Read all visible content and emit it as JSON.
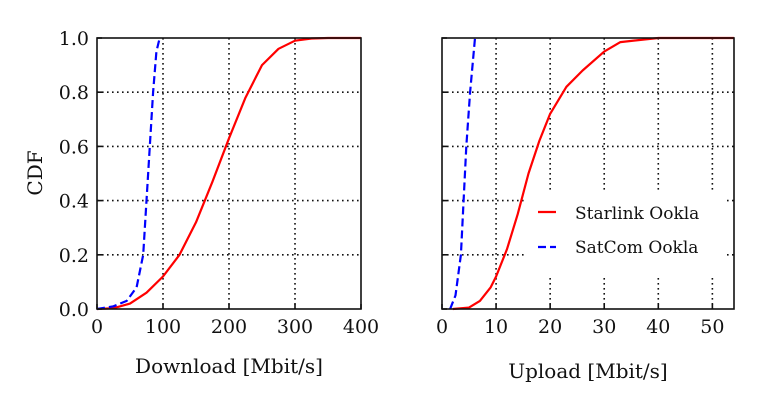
{
  "chart_data": [
    {
      "type": "line",
      "title": "",
      "xlabel": "Download [Mbit/s]",
      "ylabel": "CDF",
      "xlim": [
        0,
        400
      ],
      "ylim": [
        0,
        1.0
      ],
      "xticks": [
        "0",
        "100",
        "200",
        "300",
        "400"
      ],
      "yticks": [
        "0.0",
        "0.2",
        "0.4",
        "0.6",
        "0.8",
        "1.0"
      ],
      "grid": true,
      "series": [
        {
          "name": "Starlink Ookla",
          "color": "#ff0000",
          "style": "solid",
          "x": [
            0,
            25,
            50,
            75,
            100,
            125,
            150,
            175,
            200,
            225,
            250,
            275,
            300,
            325,
            350,
            400
          ],
          "y": [
            0,
            0.003,
            0.02,
            0.06,
            0.12,
            0.2,
            0.32,
            0.47,
            0.63,
            0.78,
            0.9,
            0.96,
            0.99,
            0.998,
            1.0,
            1.0
          ]
        },
        {
          "name": "SatCom Ookla",
          "color": "#0000ff",
          "style": "dashed",
          "x": [
            0,
            25,
            45,
            60,
            70,
            75,
            80,
            85,
            90,
            95
          ],
          "y": [
            0,
            0.01,
            0.03,
            0.08,
            0.2,
            0.4,
            0.6,
            0.8,
            0.95,
            1.0
          ]
        }
      ]
    },
    {
      "type": "line",
      "title": "",
      "xlabel": "Upload [Mbit/s]",
      "ylabel": "",
      "xlim": [
        0,
        54
      ],
      "ylim": [
        0,
        1.0
      ],
      "xticks": [
        "0",
        "10",
        "20",
        "30",
        "40",
        "50"
      ],
      "yticks": [],
      "grid": true,
      "legend_position": "center right",
      "series": [
        {
          "name": "Starlink Ookla",
          "color": "#ff0000",
          "style": "solid",
          "x": [
            2,
            5,
            7,
            9,
            10,
            12,
            14,
            16,
            18,
            20,
            23,
            26,
            30,
            33,
            40,
            54
          ],
          "y": [
            0,
            0.005,
            0.03,
            0.08,
            0.12,
            0.22,
            0.35,
            0.5,
            0.62,
            0.72,
            0.82,
            0.88,
            0.95,
            0.985,
            1.0,
            1.0
          ]
        },
        {
          "name": "SatCom Ookla",
          "color": "#0000ff",
          "style": "dashed",
          "x": [
            1.5,
            2.5,
            3.5,
            4,
            4.5,
            5.2,
            6.1
          ],
          "y": [
            0,
            0.05,
            0.2,
            0.4,
            0.6,
            0.8,
            1.0
          ]
        }
      ]
    }
  ],
  "legend": {
    "items": [
      {
        "label": "Starlink Ookla",
        "color": "#ff0000",
        "style": "solid"
      },
      {
        "label": "SatCom Ookla",
        "color": "#0000ff",
        "style": "dashed"
      }
    ]
  }
}
